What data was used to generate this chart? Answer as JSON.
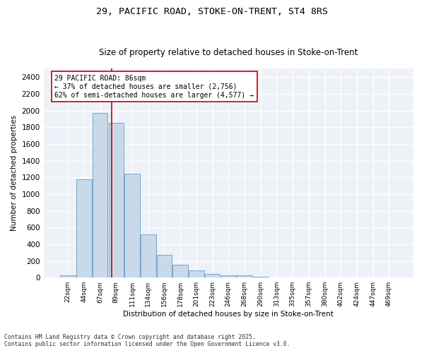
{
  "title1": "29, PACIFIC ROAD, STOKE-ON-TRENT, ST4 8RS",
  "title2": "Size of property relative to detached houses in Stoke-on-Trent",
  "xlabel": "Distribution of detached houses by size in Stoke-on-Trent",
  "ylabel": "Number of detached properties",
  "categories": [
    "22sqm",
    "44sqm",
    "67sqm",
    "89sqm",
    "111sqm",
    "134sqm",
    "156sqm",
    "178sqm",
    "201sqm",
    "223sqm",
    "246sqm",
    "268sqm",
    "290sqm",
    "313sqm",
    "335sqm",
    "357sqm",
    "380sqm",
    "402sqm",
    "424sqm",
    "447sqm",
    "469sqm"
  ],
  "values": [
    25,
    1175,
    1975,
    1850,
    1245,
    515,
    275,
    155,
    85,
    45,
    30,
    30,
    10,
    5,
    3,
    2,
    2,
    1,
    1,
    1,
    1
  ],
  "bar_color": "#c9d9ea",
  "bar_edge_color": "#6fa8cc",
  "vline_x": 2.72,
  "vline_color": "#cc0000",
  "annotation_text": "29 PACIFIC ROAD: 86sqm\n← 37% of detached houses are smaller (2,756)\n62% of semi-detached houses are larger (4,577) →",
  "ylim": [
    0,
    2500
  ],
  "yticks": [
    0,
    200,
    400,
    600,
    800,
    1000,
    1200,
    1400,
    1600,
    1800,
    2000,
    2200,
    2400
  ],
  "footer1": "Contains HM Land Registry data © Crown copyright and database right 2025.",
  "footer2": "Contains public sector information licensed under the Open Government Licence v3.0.",
  "bg_color": "#eef2f8",
  "title_fontsize": 9.5,
  "subtitle_fontsize": 8.5
}
